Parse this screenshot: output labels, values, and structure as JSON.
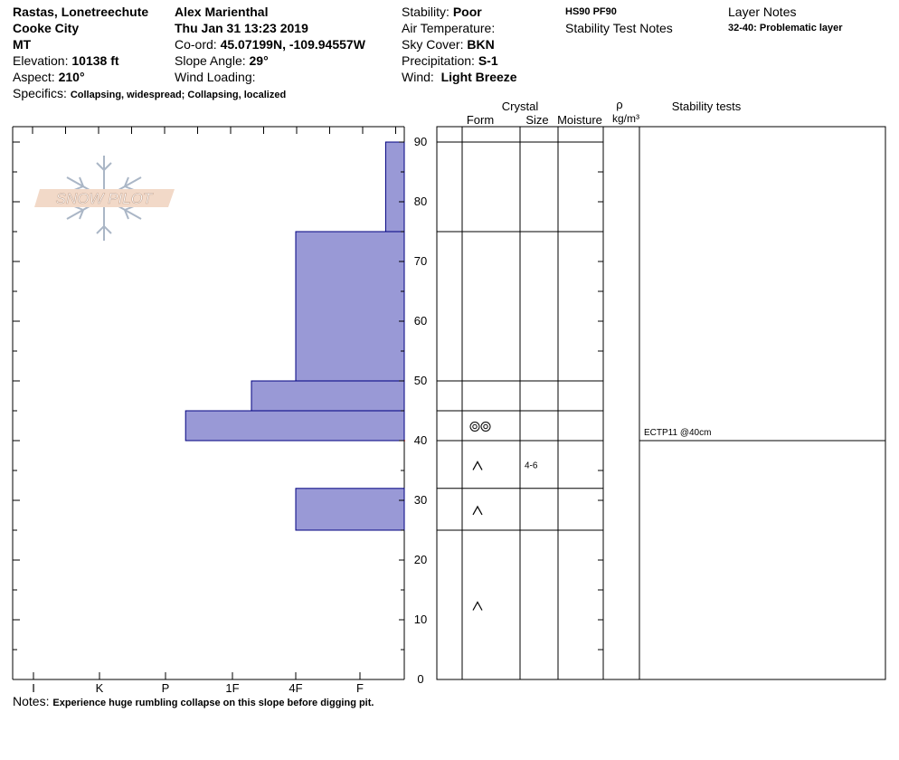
{
  "header": {
    "location": "Rastas, Lonetreechute",
    "region": "Cooke City",
    "state": "MT",
    "elevation_label": "Elevation:",
    "elevation_value": "10138 ft",
    "aspect_label": "Aspect:",
    "aspect_value": "210°",
    "specifics_label": "Specifics:",
    "specifics_value": "Collapsing, widespread; Collapsing, localized",
    "observer": "Alex Marienthal",
    "datetime": "Thu Jan 31 13:23 2019",
    "coord_label": "Co-ord:",
    "coord_value": "45.07199N, -109.94557W",
    "slope_label": "Slope Angle:",
    "slope_value": "29°",
    "wind_loading_label": "Wind Loading:",
    "stability_label": "Stability:",
    "stability_value": "Poor",
    "air_temp_label": "Air Temperature:",
    "sky_label": "Sky Cover:",
    "sky_value": "BKN",
    "precip_label": "Precipitation:",
    "precip_value": "S-1",
    "wind_label": "Wind:",
    "wind_value": "Light Breeze",
    "hs_pf": "HS90  PF90",
    "stability_test_notes": "Stability Test Notes",
    "layer_notes": "Layer Notes",
    "layer_note_1": "32-40: Problematic layer"
  },
  "notes_label": "Notes:",
  "notes_value": "Experience huge rumbling collapse on this slope before digging pit.",
  "logo_text": "SNOW PILOT",
  "columns": {
    "crystal": "Crystal",
    "form": "Form",
    "size": "Size",
    "moisture": "Moisture",
    "rho": "ρ",
    "density_unit": "kg/m³",
    "stability_tests": "Stability tests"
  },
  "stability_test": {
    "text": "ECTP11 @40cm",
    "depth": 40
  },
  "colors": {
    "layer_fill": "#9999d6",
    "layer_stroke": "#000080",
    "marker": "#8b0000"
  },
  "chart_data": {
    "type": "bar",
    "hardness_ticks": [
      "I",
      "K",
      "P",
      "1F",
      "4F",
      "F"
    ],
    "height_ticks": [
      0,
      10,
      20,
      30,
      40,
      50,
      60,
      70,
      80,
      90
    ],
    "ylim": [
      0,
      92
    ],
    "layers": [
      {
        "bottom": 75,
        "top": 90,
        "hardness_index": 5.4
      },
      {
        "bottom": 50,
        "top": 75,
        "hardness_index": 4.0
      },
      {
        "bottom": 45,
        "top": 50,
        "hardness_index": 3.3
      },
      {
        "bottom": 40,
        "top": 45,
        "hardness_index": 2.3
      },
      {
        "bottom": 32,
        "top": 40,
        "hardness_index": 5.7
      },
      {
        "bottom": 25,
        "top": 32,
        "hardness_index": 4.0
      },
      {
        "bottom": 0,
        "top": 25,
        "hardness_index": 5.7
      }
    ],
    "grains": [
      {
        "bottom": 40,
        "top": 45,
        "form": "◎◎",
        "size": ""
      },
      {
        "bottom": 32,
        "top": 40,
        "form": "^",
        "size": "4-6"
      },
      {
        "bottom": 25,
        "top": 32,
        "form": "^",
        "size": ""
      },
      {
        "bottom": 0,
        "top": 25,
        "form": "^",
        "size": ""
      }
    ],
    "problem_interface": 40
  }
}
